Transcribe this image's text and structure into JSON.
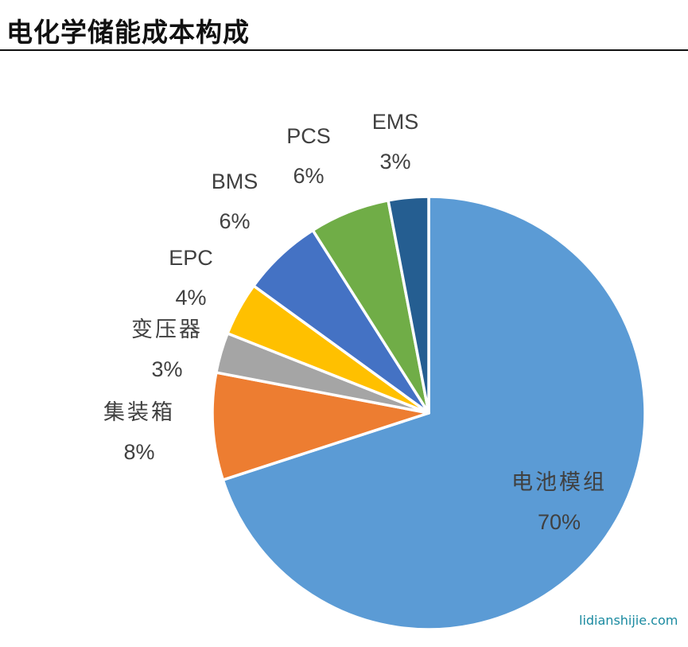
{
  "title": "电化学储能成本构成",
  "watermark": "lidianshijie.com",
  "chart_data": {
    "type": "pie",
    "title": "电化学储能成本构成",
    "start_angle": "12 o'clock",
    "direction": "clockwise",
    "legend": "none (data labels)",
    "slices": [
      {
        "label": "电池模组",
        "value": 70,
        "display": "70%",
        "color": "#5B9BD5"
      },
      {
        "label": "集装箱",
        "value": 8,
        "display": "8%",
        "color": "#ED7D31"
      },
      {
        "label": "变压器",
        "value": 3,
        "display": "3%",
        "color": "#A5A5A5"
      },
      {
        "label": "EPC",
        "value": 4,
        "display": "4%",
        "color": "#FFC000"
      },
      {
        "label": "BMS",
        "value": 6,
        "display": "6%",
        "color": "#4472C4"
      },
      {
        "label": "PCS",
        "value": 6,
        "display": "6%",
        "color": "#70AD47"
      },
      {
        "label": "EMS",
        "value": 3,
        "display": "3%",
        "color": "#255E91"
      }
    ]
  }
}
